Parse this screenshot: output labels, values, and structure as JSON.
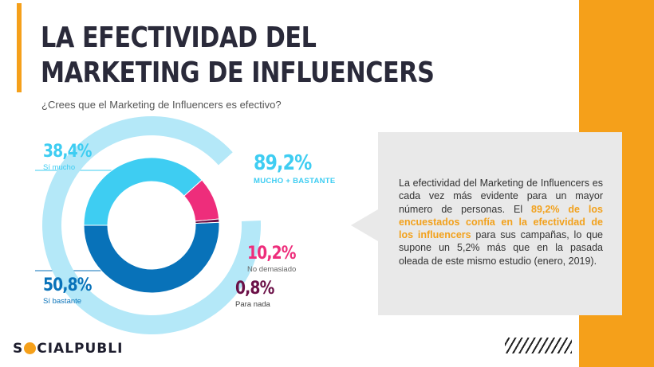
{
  "colors": {
    "accent": "#f5a01a",
    "si_mucho": "#3ecdf2",
    "si_bastante": "#0872b9",
    "no_demasiado": "#ee2d7b",
    "para_nada": "#6b1047",
    "outer_ring": "#b4e8f8",
    "callout_bg": "#e9e9e9"
  },
  "header": {
    "title_line1": "LA EFECTIVIDAD DEL",
    "title_line2": "MARKETING DE INFLUENCERS",
    "subtitle": "¿Crees que el Marketing de Influencers es efectivo?"
  },
  "chart_data": {
    "type": "pie",
    "variant": "donut",
    "categories": [
      "Sí mucho",
      "Sí bastante",
      "No demasiado",
      "Para nada"
    ],
    "values": [
      38.4,
      50.8,
      10.2,
      0.8
    ],
    "value_labels": [
      "38,4%",
      "50,8%",
      "10,2%",
      "0,8%"
    ],
    "combined": {
      "label": "MUCHO + BASTANTE",
      "value": 89.2,
      "value_label": "89,2%"
    }
  },
  "callout": {
    "part1": "La efectividad del Marketing de Influencers es cada vez más evidente para un mayor número de personas. El ",
    "highlight": "89,2% de los encuestados confía en la efectividad de los influencers",
    "part2": " para sus campañas, lo que supone un 5,2% más que en la pasada oleada de este mismo estudio (enero, 2019)."
  },
  "brand": {
    "logo_prefix": "S",
    "logo_suffix": "CIALPUBLI"
  }
}
